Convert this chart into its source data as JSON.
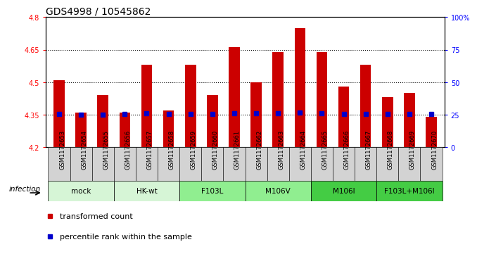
{
  "title": "GDS4998 / 10545862",
  "samples": [
    "GSM1172653",
    "GSM1172654",
    "GSM1172655",
    "GSM1172656",
    "GSM1172657",
    "GSM1172658",
    "GSM1172659",
    "GSM1172660",
    "GSM1172661",
    "GSM1172662",
    "GSM1172663",
    "GSM1172664",
    "GSM1172665",
    "GSM1172666",
    "GSM1172667",
    "GSM1172668",
    "GSM1172669",
    "GSM1172670"
  ],
  "bar_values": [
    4.51,
    4.36,
    4.44,
    4.36,
    4.58,
    4.37,
    4.58,
    4.44,
    4.66,
    4.5,
    4.64,
    4.75,
    4.64,
    4.48,
    4.58,
    4.43,
    4.45,
    4.34
  ],
  "blue_dots": [
    4.355,
    4.35,
    4.35,
    4.355,
    4.357,
    4.353,
    4.355,
    4.353,
    4.357,
    4.357,
    4.358,
    4.36,
    4.357,
    4.353,
    4.355,
    4.353,
    4.353,
    4.353
  ],
  "ylim": [
    4.2,
    4.8
  ],
  "yticks": [
    4.2,
    4.35,
    4.5,
    4.65,
    4.8
  ],
  "ytick_labels": [
    "4.2",
    "4.35",
    "4.5",
    "4.65",
    "4.8"
  ],
  "right_yticks": [
    0,
    25,
    50,
    75,
    100
  ],
  "right_ytick_labels": [
    "0",
    "25",
    "50",
    "75",
    "100%"
  ],
  "bar_color": "#cc0000",
  "dot_color": "#0000cc",
  "dotted_lines": [
    4.35,
    4.5,
    4.65
  ],
  "groups": [
    {
      "label": "mock",
      "start": 0,
      "end": 2,
      "color": "#d6f5d6"
    },
    {
      "label": "HK-wt",
      "start": 3,
      "end": 5,
      "color": "#d6f5d6"
    },
    {
      "label": "F103L",
      "start": 6,
      "end": 8,
      "color": "#90ee90"
    },
    {
      "label": "M106V",
      "start": 9,
      "end": 11,
      "color": "#90ee90"
    },
    {
      "label": "M106I",
      "start": 12,
      "end": 14,
      "color": "#44cc44"
    },
    {
      "label": "F103L+M106I",
      "start": 15,
      "end": 17,
      "color": "#44cc44"
    }
  ],
  "sample_cell_color": "#d3d3d3",
  "infection_label": "infection",
  "legend_bar_label": "transformed count",
  "legend_dot_label": "percentile rank within the sample",
  "title_fontsize": 10,
  "tick_fontsize": 7,
  "sample_fontsize": 6,
  "group_fontsize": 7.5,
  "legend_fontsize": 8
}
